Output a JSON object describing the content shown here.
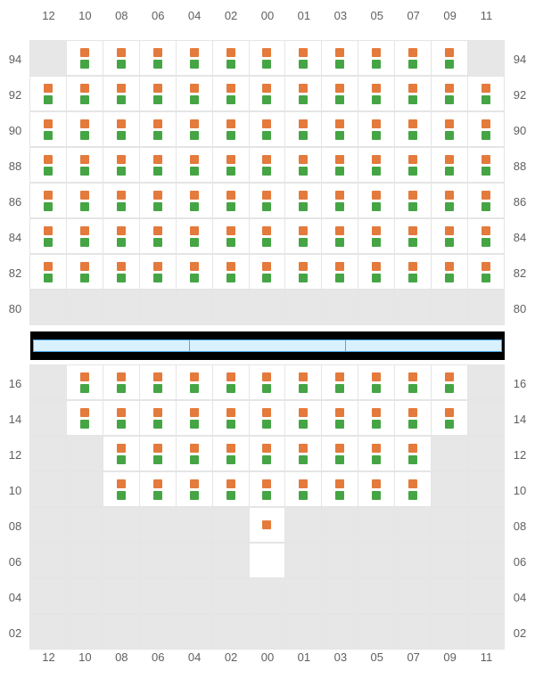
{
  "columns": [
    "12",
    "10",
    "08",
    "06",
    "04",
    "02",
    "00",
    "01",
    "03",
    "05",
    "07",
    "09",
    "11"
  ],
  "colors": {
    "orange": "#e47a3c",
    "green": "#45a545",
    "cell_active_bg": "#ffffff",
    "cell_inactive_bg": "#e7e7e7",
    "grid_line": "#e5e5e5",
    "label_text": "#606060",
    "stage_fill": "#d9f0ff",
    "stage_border": "#4aa8e8",
    "stage_black": "#000000"
  },
  "fontsize": {
    "label": 13
  },
  "cell_size": {
    "width": 40,
    "height": 40,
    "dot": 10
  },
  "stage": {
    "segments": 3
  },
  "upper": {
    "rows": [
      "94",
      "92",
      "90",
      "88",
      "86",
      "84",
      "82",
      "80"
    ],
    "cells": {
      "94": [
        "i",
        "og",
        "og",
        "og",
        "og",
        "og",
        "og",
        "og",
        "og",
        "og",
        "og",
        "og",
        "i"
      ],
      "92": [
        "og",
        "og",
        "og",
        "og",
        "og",
        "og",
        "og",
        "og",
        "og",
        "og",
        "og",
        "og",
        "og"
      ],
      "90": [
        "og",
        "og",
        "og",
        "og",
        "og",
        "og",
        "og",
        "og",
        "og",
        "og",
        "og",
        "og",
        "og"
      ],
      "88": [
        "og",
        "og",
        "og",
        "og",
        "og",
        "og",
        "og",
        "og",
        "og",
        "og",
        "og",
        "og",
        "og"
      ],
      "86": [
        "og",
        "og",
        "og",
        "og",
        "og",
        "og",
        "og",
        "og",
        "og",
        "og",
        "og",
        "og",
        "og"
      ],
      "84": [
        "og",
        "og",
        "og",
        "og",
        "og",
        "og",
        "og",
        "og",
        "og",
        "og",
        "og",
        "og",
        "og"
      ],
      "82": [
        "og",
        "og",
        "og",
        "og",
        "og",
        "og",
        "og",
        "og",
        "og",
        "og",
        "og",
        "og",
        "og"
      ],
      "80": [
        "i",
        "i",
        "i",
        "i",
        "i",
        "i",
        "i",
        "i",
        "i",
        "i",
        "i",
        "i",
        "i"
      ]
    }
  },
  "lower": {
    "rows": [
      "16",
      "14",
      "12",
      "10",
      "08",
      "06",
      "04",
      "02"
    ],
    "cells": {
      "16": [
        "i",
        "og",
        "og",
        "og",
        "og",
        "og",
        "og",
        "og",
        "og",
        "og",
        "og",
        "og",
        "i"
      ],
      "14": [
        "i",
        "og",
        "og",
        "og",
        "og",
        "og",
        "og",
        "og",
        "og",
        "og",
        "og",
        "og",
        "i"
      ],
      "12": [
        "i",
        "i",
        "og",
        "og",
        "og",
        "og",
        "og",
        "og",
        "og",
        "og",
        "og",
        "i",
        "i"
      ],
      "10": [
        "i",
        "i",
        "og",
        "og",
        "og",
        "og",
        "og",
        "og",
        "og",
        "og",
        "og",
        "i",
        "i"
      ],
      "08": [
        "i",
        "i",
        "i",
        "i",
        "i",
        "i",
        "o",
        "i",
        "i",
        "i",
        "i",
        "i",
        "i"
      ],
      "06": [
        "i",
        "i",
        "i",
        "i",
        "i",
        "i",
        "e",
        "i",
        "i",
        "i",
        "i",
        "i",
        "i"
      ],
      "04": [
        "i",
        "i",
        "i",
        "i",
        "i",
        "i",
        "i",
        "i",
        "i",
        "i",
        "i",
        "i",
        "i"
      ],
      "02": [
        "i",
        "i",
        "i",
        "i",
        "i",
        "i",
        "i",
        "i",
        "i",
        "i",
        "i",
        "i",
        "i"
      ]
    }
  },
  "legend": {
    "og": "both-dots-orange-green",
    "o": "orange-only",
    "e": "active-empty",
    "i": "inactive-empty"
  }
}
